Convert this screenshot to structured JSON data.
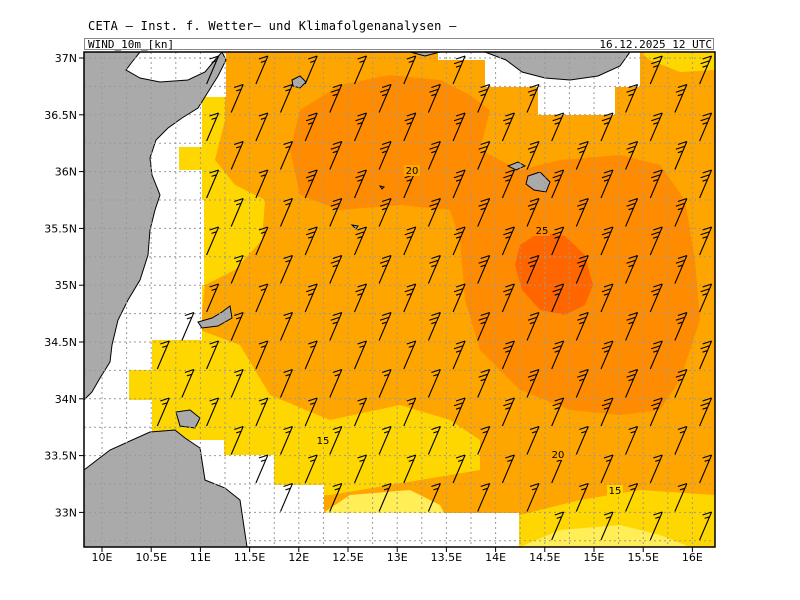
{
  "header": {
    "title": "CETA — Inst. f. Wetter— und Klimafolgenanalysen —",
    "variable": "WIND_10m_[kn]",
    "valid_time": "16.12.2025 12 UTC"
  },
  "map": {
    "lon_ticks": [
      "10E",
      "10.5E",
      "11E",
      "11.5E",
      "12E",
      "12.5E",
      "13E",
      "13.5E",
      "14E",
      "14.5E",
      "15E",
      "15.5E",
      "16E"
    ],
    "lat_ticks": [
      "37N",
      "36.5N",
      "36N",
      "35.5N",
      "35N",
      "34.5N",
      "34N",
      "33.5N",
      "33N"
    ],
    "contour_labels": [
      "20",
      "25",
      "15",
      "20",
      "15"
    ],
    "colors": {
      "land": "#aaaaaa",
      "no_data": "#ffffff",
      "band_10_15": "#ffd700",
      "band_15_20": "#ffa500",
      "band_20_25": "#ff8c00",
      "band_25_30": "#ff6600",
      "band_5_10": "#ffee55",
      "barb": "#000000",
      "grid": "#999999"
    },
    "barb_direction": "northwest"
  }
}
